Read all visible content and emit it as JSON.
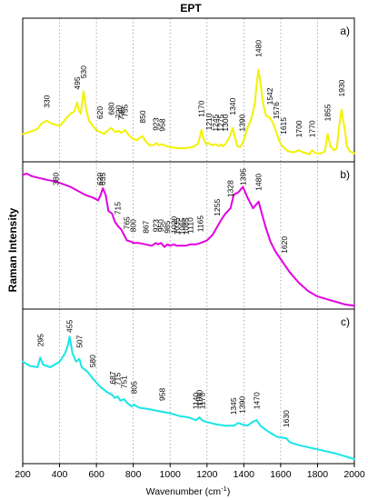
{
  "chart_data": {
    "type": "line",
    "title": "EPT",
    "xlabel": "Wavenumber (cm",
    "xlabel_sup": "-1",
    "xlabel_close": ")",
    "ylabel": "Raman Intensity",
    "xlim": [
      200,
      2000
    ],
    "xticks": [
      200,
      400,
      600,
      800,
      1000,
      1200,
      1400,
      1600,
      1800,
      2000
    ],
    "grid": "vertical dotted",
    "series": [
      {
        "name": "a)",
        "color": "#f2f200",
        "x": [
          200,
          240,
          280,
          300,
          330,
          360,
          400,
          430,
          460,
          480,
          495,
          505,
          515,
          530,
          545,
          560,
          580,
          600,
          620,
          640,
          660,
          680,
          700,
          720,
          735,
          755,
          775,
          800,
          820,
          850,
          870,
          890,
          910,
          925,
          940,
          958,
          980,
          1000,
          1040,
          1080,
          1120,
          1150,
          1160,
          1170,
          1180,
          1195,
          1210,
          1225,
          1245,
          1265,
          1275,
          1285,
          1300,
          1320,
          1340,
          1350,
          1365,
          1380,
          1390,
          1400,
          1420,
          1440,
          1460,
          1470,
          1480,
          1490,
          1505,
          1520,
          1542,
          1560,
          1576,
          1595,
          1615,
          1640,
          1670,
          1700,
          1720,
          1740,
          1755,
          1770,
          1790,
          1820,
          1840,
          1855,
          1870,
          1890,
          1905,
          1915,
          1930,
          1945,
          1960,
          1975,
          2000
        ],
        "values": [
          0.22,
          0.24,
          0.27,
          0.32,
          0.35,
          0.32,
          0.3,
          0.36,
          0.42,
          0.44,
          0.53,
          0.45,
          0.42,
          0.64,
          0.45,
          0.35,
          0.3,
          0.26,
          0.24,
          0.22,
          0.25,
          0.28,
          0.24,
          0.25,
          0.23,
          0.26,
          0.21,
          0.17,
          0.16,
          0.2,
          0.14,
          0.11,
          0.11,
          0.13,
          0.11,
          0.12,
          0.1,
          0.09,
          0.08,
          0.08,
          0.09,
          0.12,
          0.18,
          0.26,
          0.18,
          0.12,
          0.13,
          0.11,
          0.12,
          0.1,
          0.12,
          0.1,
          0.12,
          0.18,
          0.28,
          0.2,
          0.1,
          0.09,
          0.12,
          0.16,
          0.28,
          0.36,
          0.52,
          0.72,
          0.85,
          0.72,
          0.52,
          0.4,
          0.38,
          0.32,
          0.24,
          0.14,
          0.09,
          0.05,
          0.04,
          0.06,
          0.04,
          0.03,
          0.02,
          0.06,
          0.03,
          0.03,
          0.05,
          0.22,
          0.1,
          0.06,
          0.08,
          0.26,
          0.46,
          0.3,
          0.1,
          0.05,
          0.03
        ]
      },
      {
        "name": "b)",
        "color": "#e000e0",
        "x": [
          200,
          220,
          250,
          280,
          310,
          340,
          380,
          420,
          460,
          500,
          540,
          580,
          610,
          620,
          635,
          650,
          665,
          685,
          700,
          715,
          735,
          765,
          790,
          800,
          830,
          867,
          900,
          923,
          935,
          950,
          970,
          985,
          1000,
          1020,
          1035,
          1065,
          1085,
          1110,
          1140,
          1165,
          1200,
          1230,
          1255,
          1280,
          1300,
          1328,
          1345,
          1370,
          1395,
          1420,
          1450,
          1480,
          1500,
          1520,
          1545,
          1570,
          1600,
          1620,
          1650,
          1700,
          1750,
          1800,
          1850,
          1900,
          1950,
          2000
        ],
        "values": [
          0.95,
          0.96,
          0.94,
          0.93,
          0.92,
          0.91,
          0.9,
          0.88,
          0.86,
          0.83,
          0.8,
          0.78,
          0.76,
          0.79,
          0.85,
          0.8,
          0.68,
          0.66,
          0.6,
          0.57,
          0.54,
          0.46,
          0.45,
          0.44,
          0.44,
          0.43,
          0.42,
          0.44,
          0.43,
          0.44,
          0.41,
          0.43,
          0.42,
          0.43,
          0.42,
          0.42,
          0.42,
          0.43,
          0.43,
          0.44,
          0.46,
          0.5,
          0.56,
          0.62,
          0.66,
          0.7,
          0.8,
          0.82,
          0.86,
          0.78,
          0.7,
          0.75,
          0.65,
          0.55,
          0.45,
          0.38,
          0.32,
          0.28,
          0.22,
          0.14,
          0.08,
          0.04,
          0.02,
          0.0,
          -0.02,
          -0.03
        ]
      },
      {
        "name": "c)",
        "color": "#18e6e6",
        "x": [
          200,
          240,
          280,
          295,
          310,
          350,
          400,
          430,
          445,
          455,
          470,
          490,
          507,
          520,
          550,
          580,
          620,
          660,
          687,
          700,
          715,
          730,
          751,
          770,
          790,
          805,
          830,
          880,
          958,
          1000,
          1050,
          1100,
          1140,
          1160,
          1173,
          1190,
          1250,
          1300,
          1345,
          1370,
          1390,
          1420,
          1450,
          1470,
          1490,
          1530,
          1580,
          1630,
          1650,
          1700,
          1800,
          1900,
          2000
        ],
        "values": [
          0.7,
          0.67,
          0.66,
          0.73,
          0.68,
          0.66,
          0.7,
          0.76,
          0.82,
          0.88,
          0.76,
          0.7,
          0.72,
          0.66,
          0.63,
          0.58,
          0.52,
          0.48,
          0.46,
          0.44,
          0.45,
          0.42,
          0.43,
          0.4,
          0.38,
          0.39,
          0.37,
          0.36,
          0.34,
          0.33,
          0.31,
          0.3,
          0.28,
          0.3,
          0.28,
          0.27,
          0.25,
          0.24,
          0.24,
          0.26,
          0.25,
          0.24,
          0.27,
          0.28,
          0.24,
          0.2,
          0.16,
          0.15,
          0.12,
          0.1,
          0.07,
          0.04,
          0.0
        ]
      }
    ],
    "peak_labels": [
      [
        "330",
        "495",
        "530",
        "620",
        "680",
        "720",
        "735",
        "755",
        "850",
        "923",
        "958",
        "1170",
        "1210",
        "1245",
        "1275",
        "1300",
        "1340",
        "1390",
        "1480",
        "1542",
        "1576",
        "1615",
        "1700",
        "1770",
        "1855",
        "1930"
      ],
      [
        "380",
        "620",
        "635",
        "715",
        "765",
        "800",
        "867",
        "923",
        "950",
        "985",
        "1020",
        "1035",
        "1065",
        "1085",
        "1110",
        "1165",
        "1255",
        "1328",
        "1395",
        "1480",
        "1620"
      ],
      [
        "295",
        "455",
        "507",
        "580",
        "687",
        "715",
        "751",
        "805",
        "958",
        "1173",
        "1140",
        "1160",
        "1345",
        "1390",
        "1470",
        "1630"
      ]
    ]
  }
}
